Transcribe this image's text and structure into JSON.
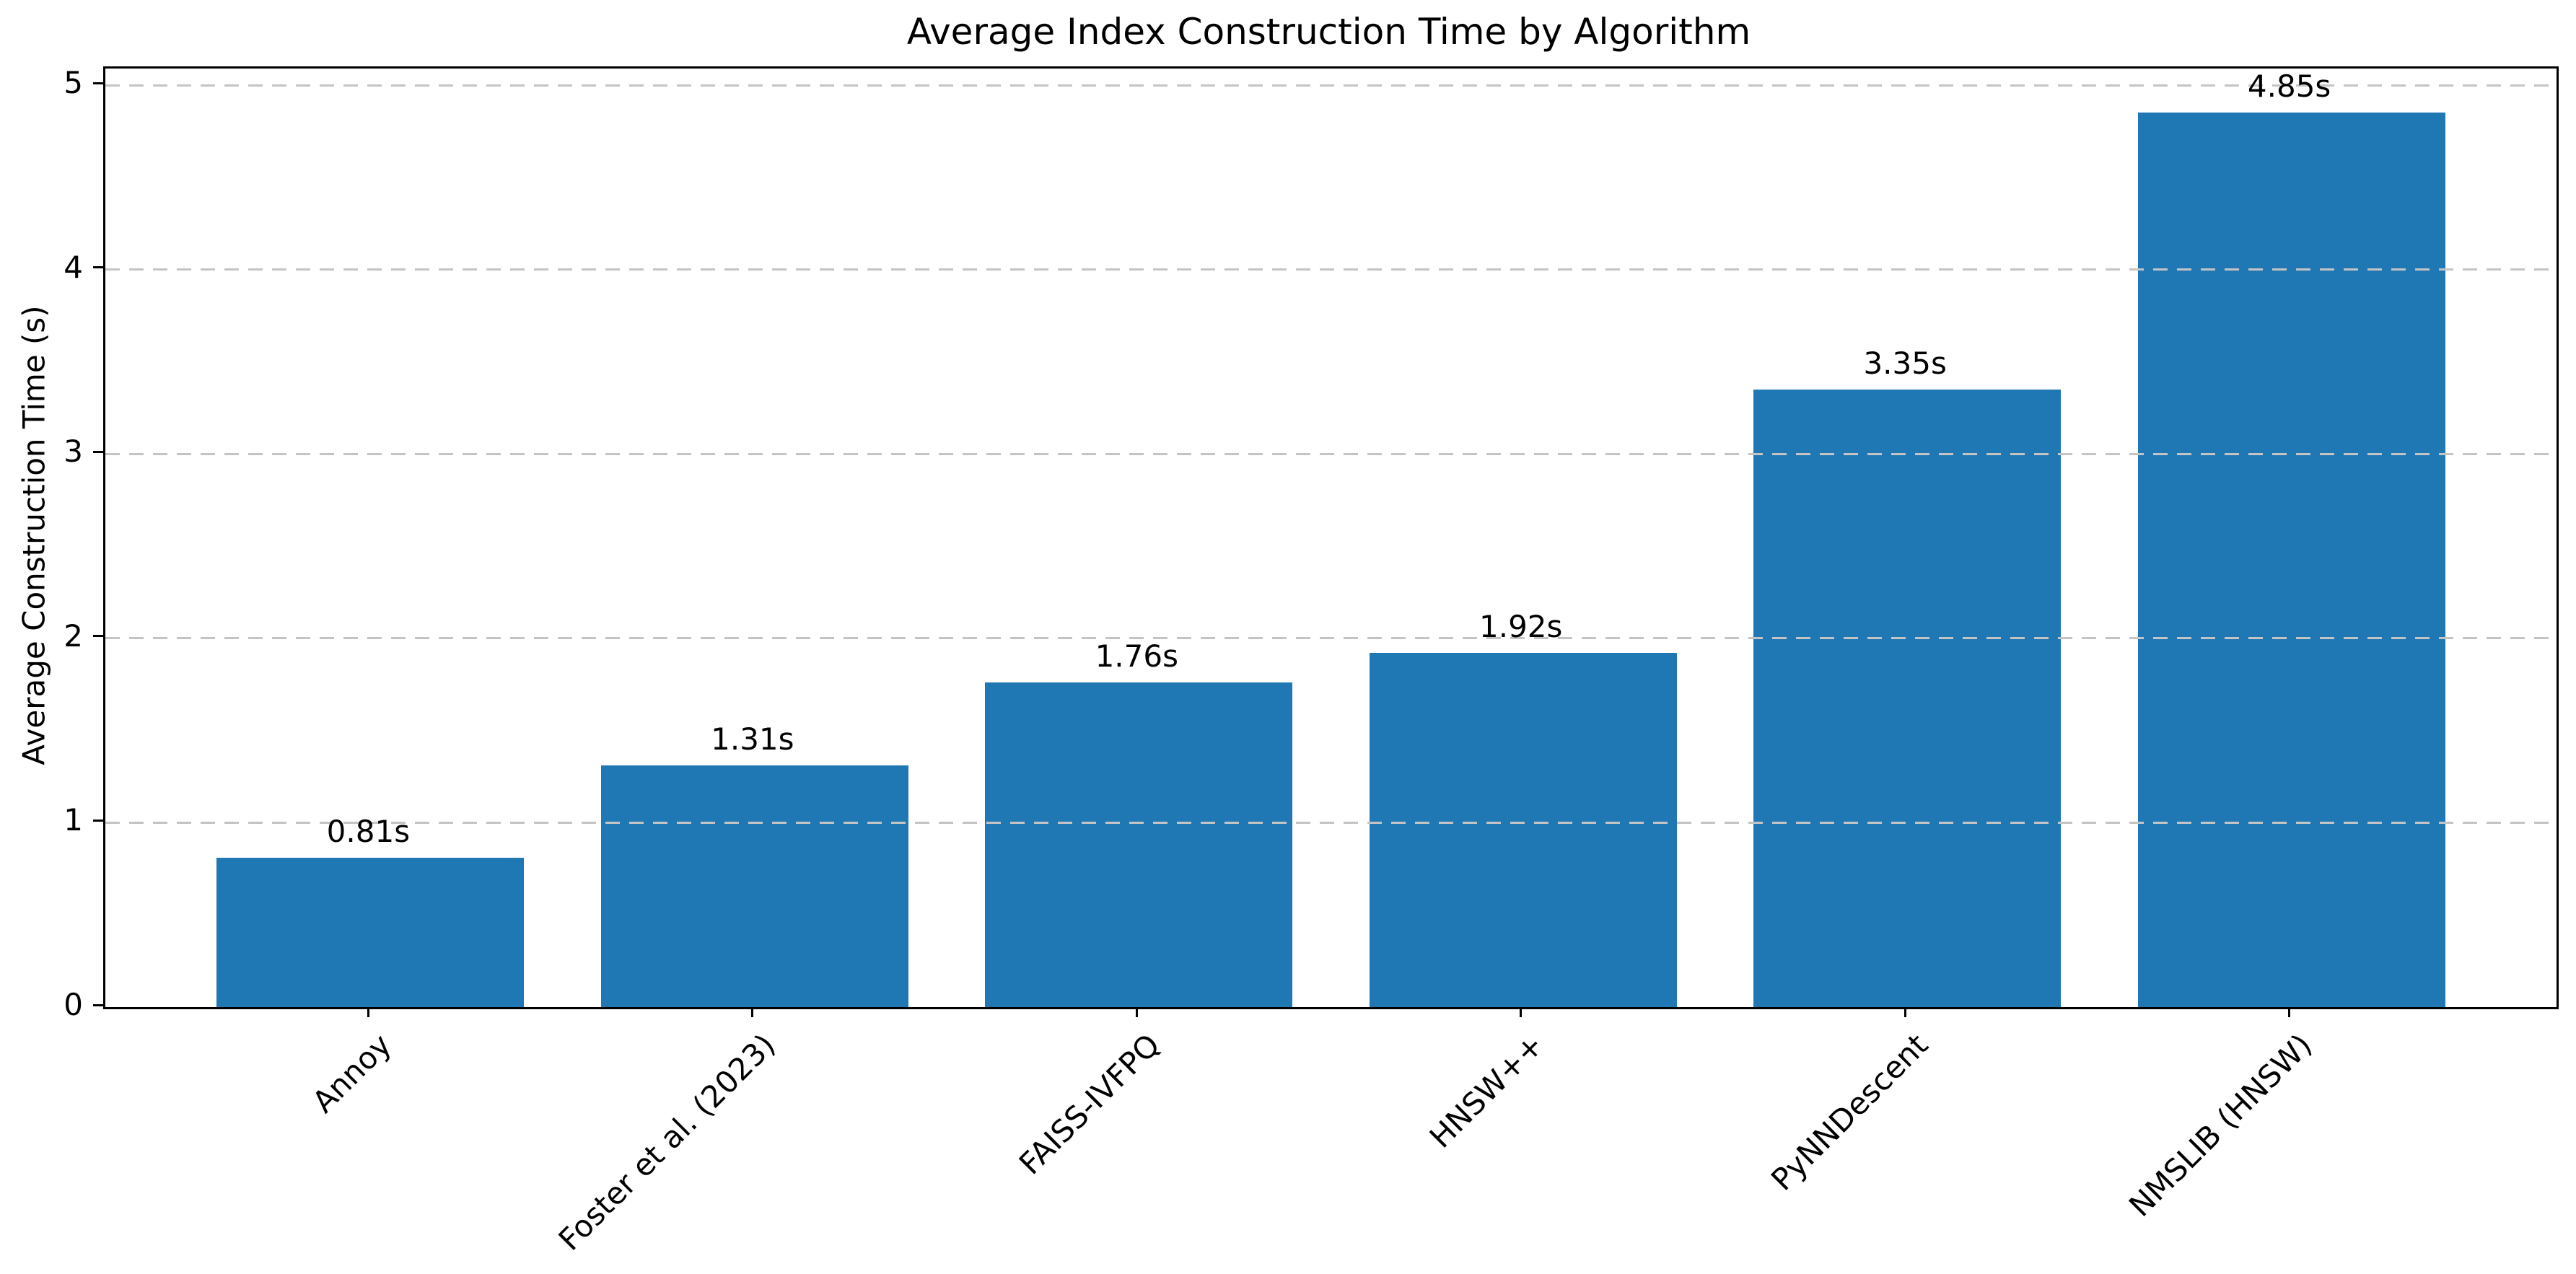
{
  "chart_data": {
    "type": "bar",
    "title": "Average Index Construction Time by Algorithm",
    "xlabel": "",
    "ylabel": "Average Construction Time (s)",
    "categories": [
      "Annoy",
      "Foster et al. (2023)",
      "FAISS-IVFPQ",
      "HNSW++",
      "PyNNDescent",
      "NMSLIB (HNSW)"
    ],
    "values": [
      0.81,
      1.31,
      1.76,
      1.92,
      3.35,
      4.85
    ],
    "bar_value_labels": [
      "0.81s",
      "1.31s",
      "1.76s",
      "1.92s",
      "3.35s",
      "4.85s"
    ],
    "yticks": [
      0,
      1,
      2,
      3,
      4,
      5
    ],
    "ylim": [
      0,
      5.09
    ],
    "grid": "horizontal-dashed",
    "legend": "none",
    "bar_color": "#1f77b4",
    "grid_color": "#c4c4c4",
    "axis_color": "#000000",
    "text_color": "#000000"
  }
}
